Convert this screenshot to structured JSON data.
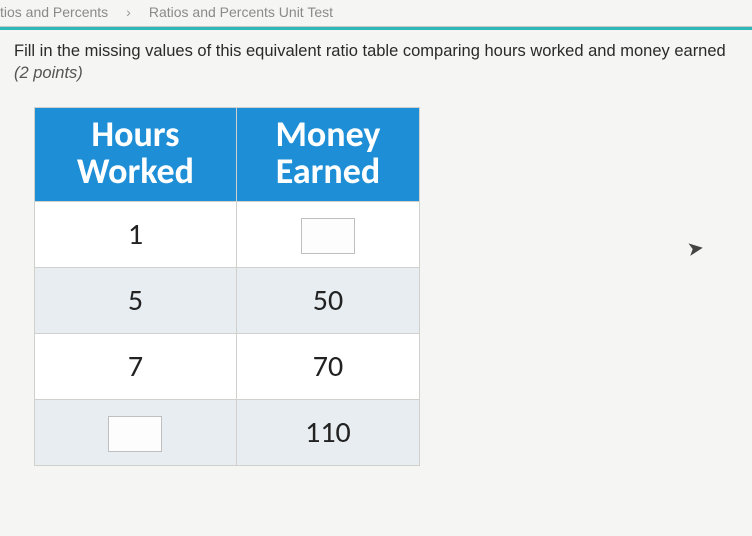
{
  "breadcrumb": {
    "item1": "tios and Percents",
    "item2": "Ratios and Percents Unit Test"
  },
  "question": {
    "prompt": "Fill in the missing values of this equivalent ratio table comparing hours worked and money earned",
    "points": "(2 points)"
  },
  "table": {
    "header": {
      "col1_line1": "Hours",
      "col1_line2": "Worked",
      "col2_line1": "Money",
      "col2_line2": "Earned"
    },
    "rows": [
      {
        "hours": "1",
        "money": ""
      },
      {
        "hours": "5",
        "money": "50"
      },
      {
        "hours": "7",
        "money": "70"
      },
      {
        "hours": "",
        "money": "110"
      }
    ]
  },
  "colors": {
    "header_bg": "#1e8fd6",
    "teal_bar": "#2fb8b8",
    "row_alt_bg": "#e8edf1",
    "body_bg": "#f5f5f3"
  }
}
